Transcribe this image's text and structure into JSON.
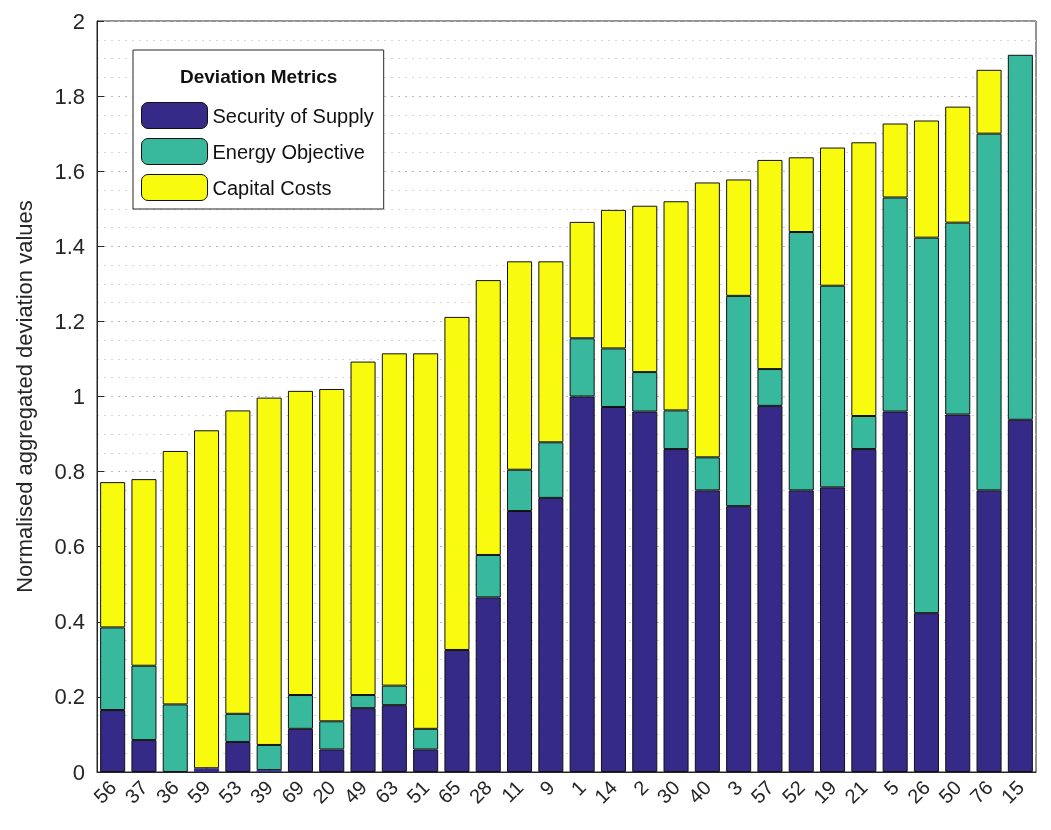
{
  "chart_data": {
    "type": "bar",
    "stacked": true,
    "ylabel": "Normalised aggregated deviation values",
    "legend_title": "Deviation Metrics",
    "legend": "top left",
    "grid": "y",
    "categories": [
      "56",
      "37",
      "36",
      "59",
      "53",
      "39",
      "69",
      "20",
      "49",
      "63",
      "51",
      "65",
      "28",
      "11",
      "9",
      "1",
      "14",
      "2",
      "30",
      "40",
      "3",
      "57",
      "52",
      "19",
      "21",
      "5",
      "26",
      "50",
      "76",
      "15"
    ],
    "ylim": [
      0,
      2
    ],
    "yticks": [
      0,
      0.2,
      0.4,
      0.6,
      0.8,
      1,
      1.2,
      1.4,
      1.6,
      1.8,
      2
    ],
    "series": [
      {
        "name": "Security of Supply",
        "color": "#352a87",
        "values": [
          0.165,
          0.085,
          0,
          0.01,
          0.08,
          0.005,
          0.115,
          0.06,
          0.17,
          0.178,
          0.06,
          0.325,
          0.465,
          0.695,
          0.73,
          1.0,
          0.972,
          0.96,
          0.86,
          0.75,
          0.708,
          0.975,
          0.75,
          0.758,
          0.86,
          0.96,
          0.423,
          0.952,
          0.75,
          0.938
        ]
      },
      {
        "name": "Energy Objective",
        "color": "#38b99e",
        "values": [
          0.22,
          0.198,
          0.18,
          0,
          0.075,
          0.067,
          0.09,
          0.075,
          0.035,
          0.052,
          0.055,
          0,
          0.113,
          0.11,
          0.148,
          0.155,
          0.156,
          0.105,
          0.103,
          0.088,
          0.56,
          0.098,
          0.688,
          0.537,
          0.088,
          0.57,
          1.0,
          0.511,
          0.95,
          0.972
        ]
      },
      {
        "name": "Capital Costs",
        "color": "#f9fb0e",
        "values": [
          0.387,
          0.497,
          0.675,
          0.9,
          0.808,
          0.925,
          0.81,
          0.885,
          0.888,
          0.885,
          1.0,
          0.887,
          0.732,
          0.555,
          0.482,
          0.31,
          0.369,
          0.443,
          0.557,
          0.732,
          0.31,
          0.557,
          0.199,
          0.368,
          0.729,
          0.197,
          0.312,
          0.309,
          0.17,
          0
        ]
      }
    ]
  }
}
